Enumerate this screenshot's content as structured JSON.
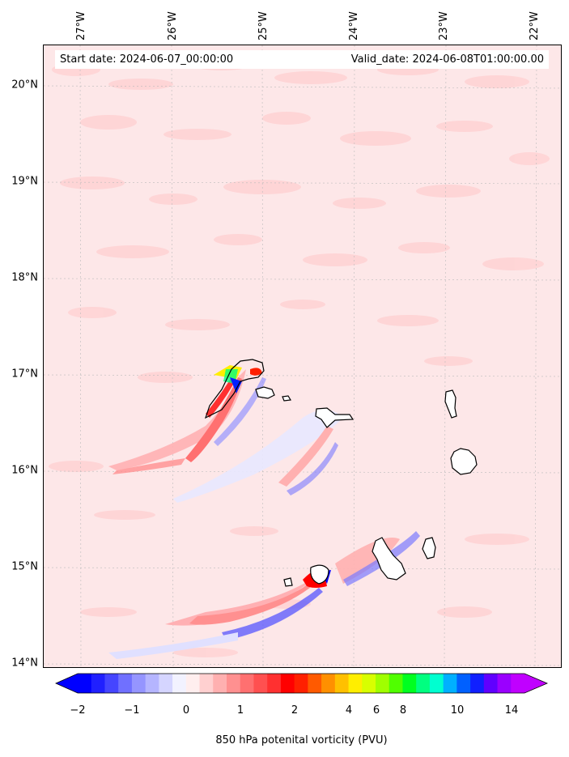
{
  "header": {
    "start_date": "Start date: 2024-06-07_00:00:00",
    "valid_date": "Valid_date: 2024-06-08T01:00:00.00"
  },
  "axes": {
    "lon_labels": [
      "27°W",
      "26°W",
      "25°W",
      "24°W",
      "23°W",
      "22°W"
    ],
    "lat_labels": [
      "20°N",
      "19°N",
      "18°N",
      "17°N",
      "16°N",
      "15°N",
      "14°N"
    ],
    "grid": true
  },
  "colorbar": {
    "title": "850 hPa potenital vorticity (PVU)",
    "tick_labels": [
      "−2",
      "−1",
      "0",
      "1",
      "2",
      "4",
      "6",
      "8",
      "10",
      "14"
    ],
    "extend": "both",
    "colors": [
      "#0000ff",
      "#2020ff",
      "#4545ff",
      "#7070ff",
      "#9595ff",
      "#b5b5ff",
      "#d5d5ff",
      "#f2f2ff",
      "#ffeeee",
      "#ffd0d0",
      "#ffb0b0",
      "#ff9090",
      "#ff7070",
      "#ff5050",
      "#ff3030",
      "#ff0000",
      "#ff2000",
      "#ff5a00",
      "#ff9000",
      "#ffc000",
      "#ffee00",
      "#d8ff00",
      "#a0ff00",
      "#50ff00",
      "#00ff20",
      "#00ff80",
      "#00ffd0",
      "#00b0ff",
      "#0060ff",
      "#1020ff",
      "#6000ff",
      "#9a00ff",
      "#c000ff"
    ]
  },
  "colors": {
    "background": "#fde7e8",
    "coastline": "#000000"
  }
}
